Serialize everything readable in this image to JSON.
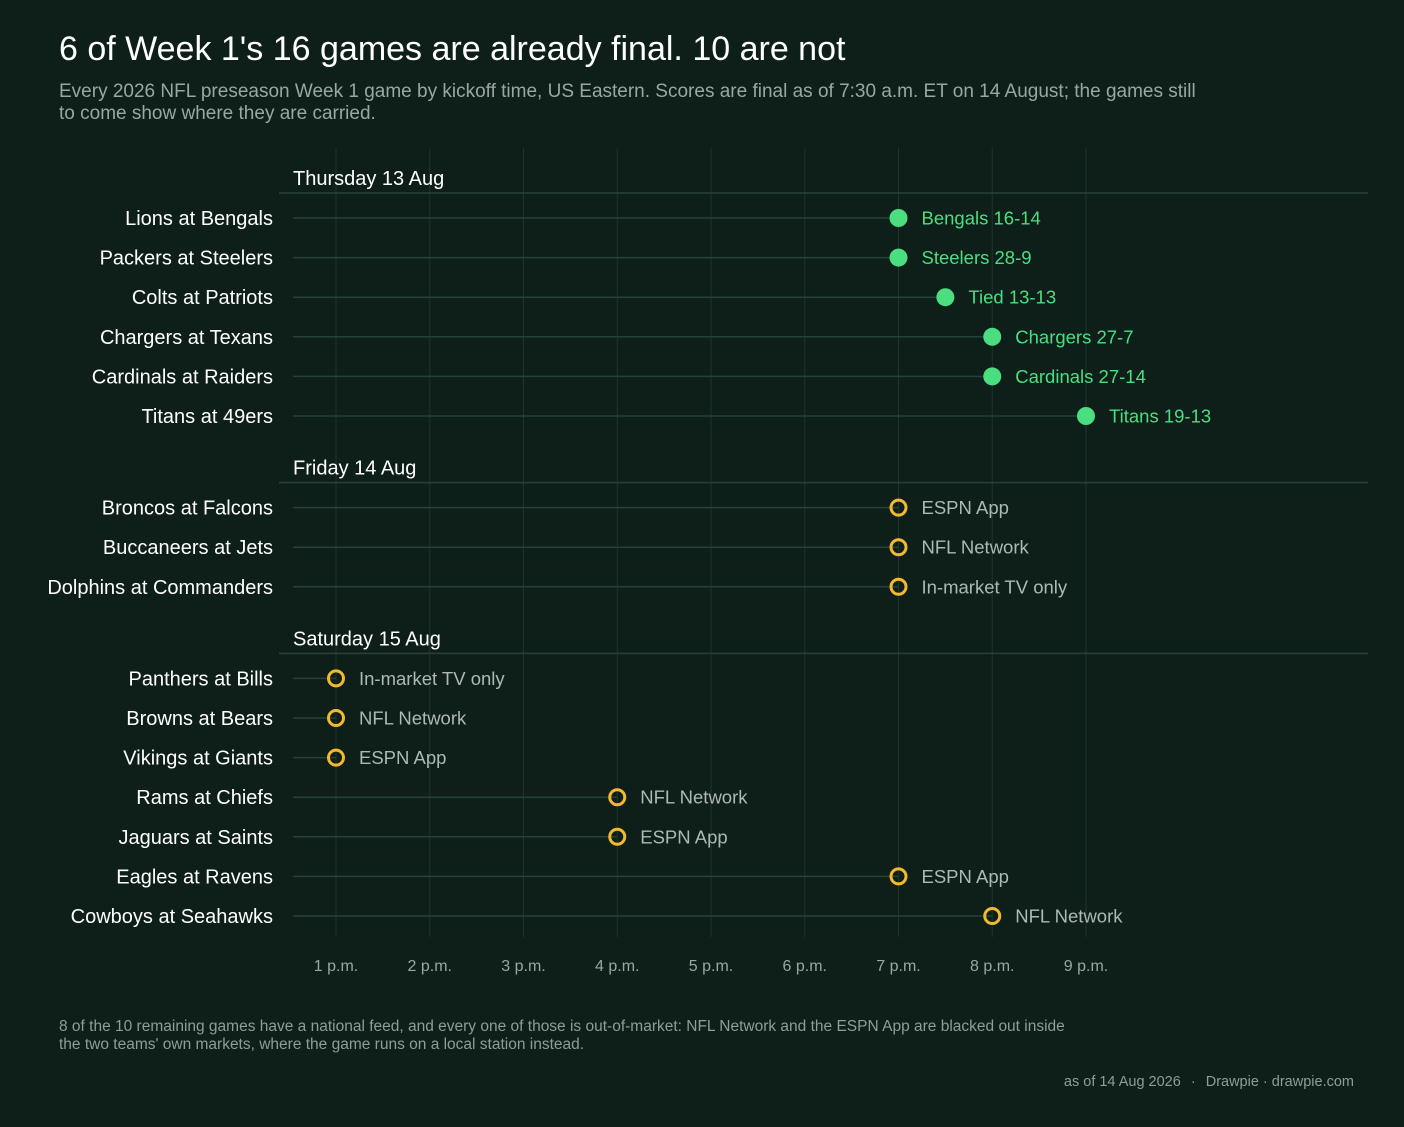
{
  "title": "6 of Week 1's 16 games are already final. 10 are not",
  "subtitle": "Every 2026 NFL preseason Week 1 game by kickoff time, US Eastern. Scores are final as of 7:30 a.m. ET on 14 August; the games still to come show where they are carried.",
  "footnote": "8 of the 10 remaining games have a national feed, and every one of those is out-of-market: NFL Network and the ESPN App are blacked out inside the two teams' own markets, where the game runs on a local station instead.",
  "credit": {
    "date": "as of 14 Aug 2026",
    "separator": "·",
    "source": "Drawpie · drawpie.com"
  },
  "colors": {
    "background": "#0e1f1a",
    "final": "#4ade80",
    "upcoming": "#f2b92e",
    "grid": "#1f342d",
    "text": "#ffffff",
    "muted": "#9aa6a2"
  },
  "chart_data": {
    "type": "scatter",
    "xlabel": "",
    "ylabel": "",
    "x_unit": "hour of day (24h, US Eastern)",
    "x_ticks": [
      {
        "value": 13,
        "label": "1 p.m."
      },
      {
        "value": 14,
        "label": "2 p.m."
      },
      {
        "value": 15,
        "label": "3 p.m."
      },
      {
        "value": 16,
        "label": "4 p.m."
      },
      {
        "value": 17,
        "label": "5 p.m."
      },
      {
        "value": 18,
        "label": "6 p.m."
      },
      {
        "value": 19,
        "label": "7 p.m."
      },
      {
        "value": 20,
        "label": "8 p.m."
      },
      {
        "value": 21,
        "label": "9 p.m."
      }
    ],
    "xlim": [
      12.5,
      21.5
    ],
    "grid": true,
    "legend": "none",
    "groups": [
      {
        "day": "Thursday 13 Aug",
        "games": [
          {
            "matchup": "Lions at Bengals",
            "kickoff": 19,
            "status": "final",
            "label": "Bengals 16-14"
          },
          {
            "matchup": "Packers at Steelers",
            "kickoff": 19,
            "status": "final",
            "label": "Steelers 28-9"
          },
          {
            "matchup": "Colts at Patriots",
            "kickoff": 19.5,
            "status": "final",
            "label": "Tied 13-13"
          },
          {
            "matchup": "Chargers at Texans",
            "kickoff": 20,
            "status": "final",
            "label": "Chargers 27-7"
          },
          {
            "matchup": "Cardinals at Raiders",
            "kickoff": 20,
            "status": "final",
            "label": "Cardinals 27-14"
          },
          {
            "matchup": "Titans at 49ers",
            "kickoff": 21,
            "status": "final",
            "label": "Titans 19-13"
          }
        ]
      },
      {
        "day": "Friday 14 Aug",
        "games": [
          {
            "matchup": "Broncos at Falcons",
            "kickoff": 19,
            "status": "upcoming",
            "label": "ESPN App"
          },
          {
            "matchup": "Buccaneers at Jets",
            "kickoff": 19,
            "status": "upcoming",
            "label": "NFL Network"
          },
          {
            "matchup": "Dolphins at Commanders",
            "kickoff": 19,
            "status": "upcoming",
            "label": "In-market TV only"
          }
        ]
      },
      {
        "day": "Saturday 15 Aug",
        "games": [
          {
            "matchup": "Panthers at Bills",
            "kickoff": 13,
            "status": "upcoming",
            "label": "In-market TV only"
          },
          {
            "matchup": "Browns at Bears",
            "kickoff": 13,
            "status": "upcoming",
            "label": "NFL Network"
          },
          {
            "matchup": "Vikings at Giants",
            "kickoff": 13,
            "status": "upcoming",
            "label": "ESPN App"
          },
          {
            "matchup": "Rams at Chiefs",
            "kickoff": 16,
            "status": "upcoming",
            "label": "NFL Network"
          },
          {
            "matchup": "Jaguars at Saints",
            "kickoff": 16,
            "status": "upcoming",
            "label": "ESPN App"
          },
          {
            "matchup": "Eagles at Ravens",
            "kickoff": 19,
            "status": "upcoming",
            "label": "ESPN App"
          },
          {
            "matchup": "Cowboys at Seahawks",
            "kickoff": 20,
            "status": "upcoming",
            "label": "NFL Network"
          }
        ]
      }
    ]
  }
}
